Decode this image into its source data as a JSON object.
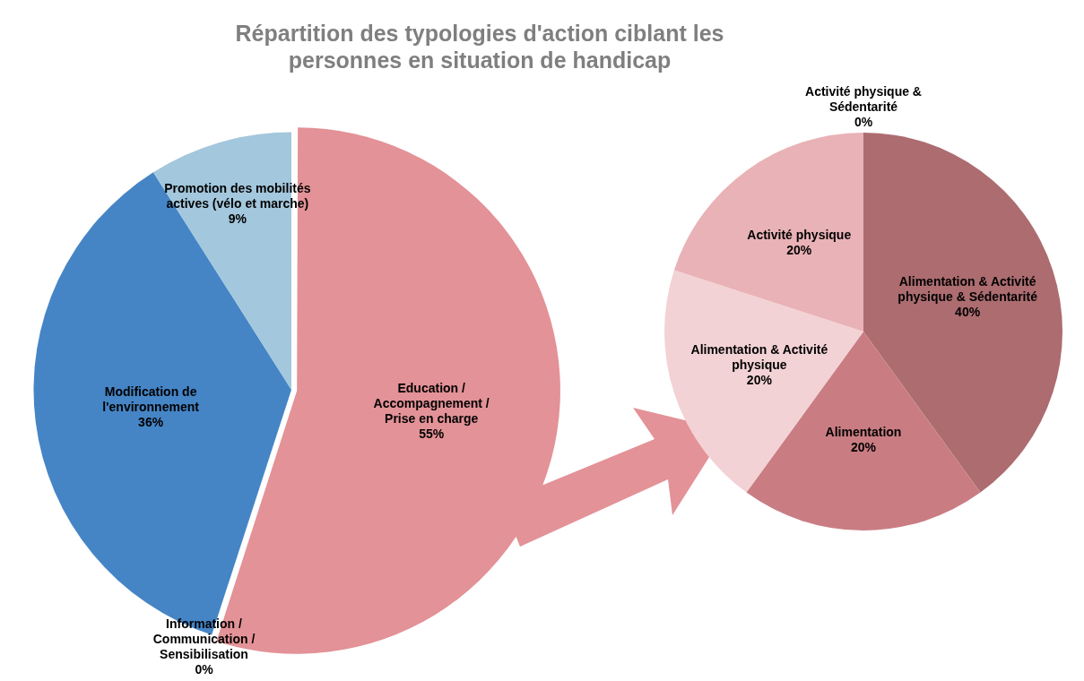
{
  "chart_data": [
    {
      "type": "pie",
      "title": "Répartition des typologies d'action ciblant les personnes en situation de handicap",
      "categories": [
        "Education / Accompagnement / Prise en charge",
        "Information / Communication / Sensibilisation",
        "Modification de l'environnement",
        "Promotion des mobilités actives (vélo et marche)"
      ],
      "values": [
        55,
        0,
        36,
        9
      ],
      "colors": [
        "#e39297",
        "#c0504d",
        "#4585c6",
        "#a3c7dc"
      ],
      "value_labels": [
        "55%",
        "0%",
        "36%",
        "9%"
      ],
      "legend": false
    },
    {
      "type": "pie",
      "categories": [
        "Alimentation & Activité physique & Sédentarité",
        "Alimentation",
        "Alimentation & Activité physique",
        "Activité physique",
        "Activité physique & Sédentarité"
      ],
      "values": [
        40,
        20,
        20,
        20,
        0
      ],
      "colors": [
        "#ac6c70",
        "#c97d82",
        "#f2d2d5",
        "#e9b2b6",
        "#d9a0a4"
      ],
      "value_labels": [
        "40%",
        "20%",
        "20%",
        "20%",
        "0%"
      ],
      "legend": false
    }
  ]
}
